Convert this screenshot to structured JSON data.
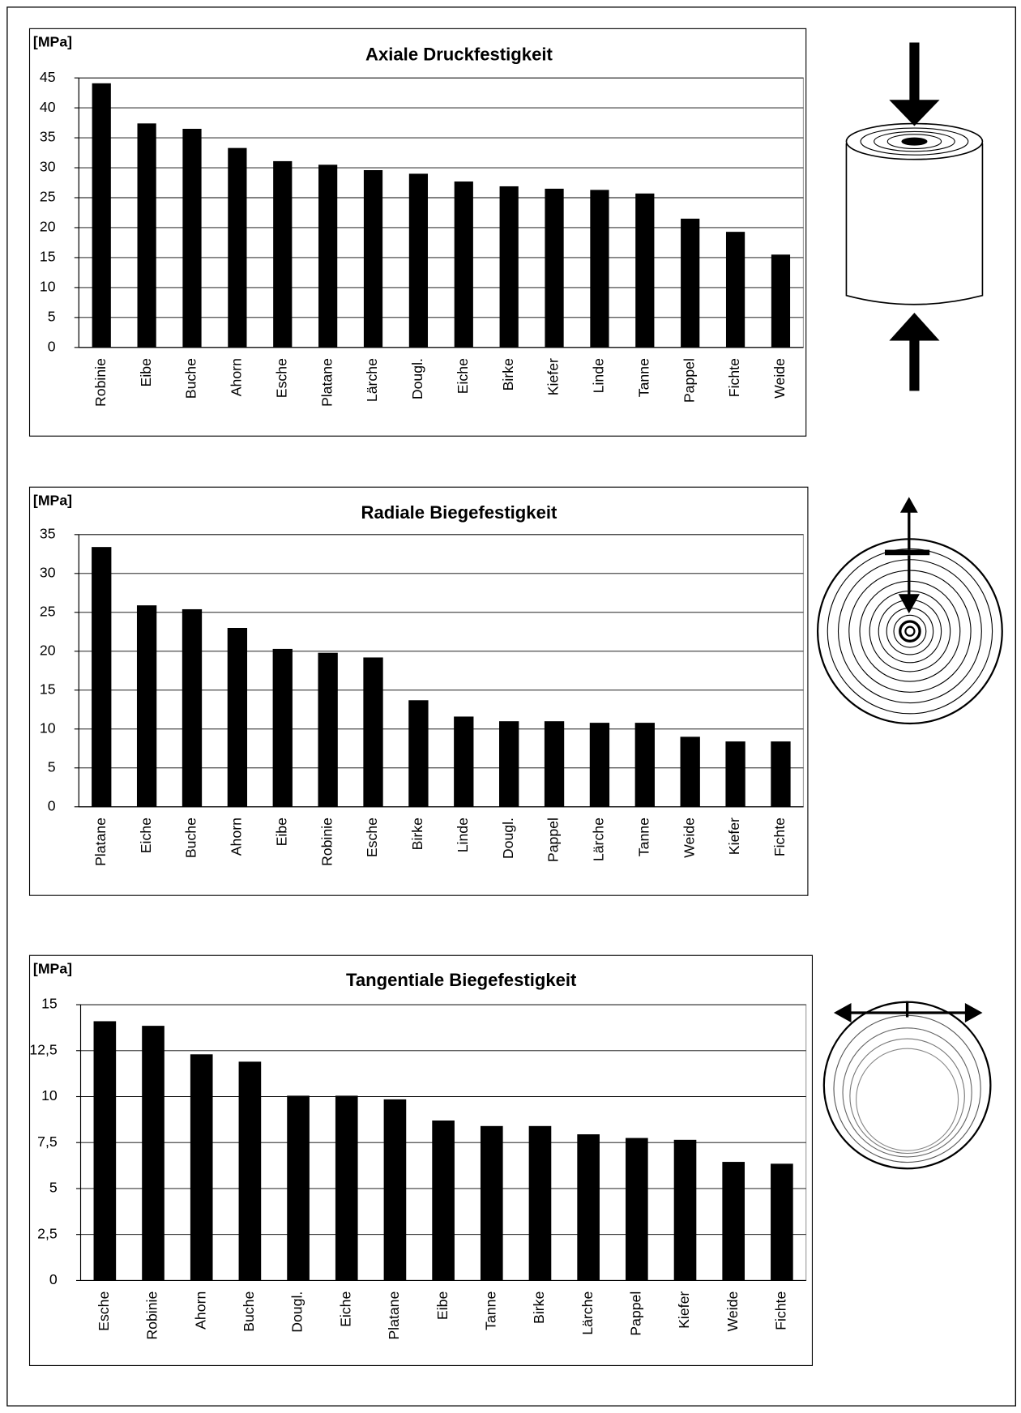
{
  "chart_data": [
    {
      "type": "bar",
      "title": "Axiale Druckfestigkeit",
      "y_label": "[MPa]",
      "color": "#000000",
      "grid": true,
      "categories": [
        "Robinie",
        "Eibe",
        "Buche",
        "Ahorn",
        "Esche",
        "Platane",
        "Lärche",
        "Dougl.",
        "Eiche",
        "Birke",
        "Kiefer",
        "Linde",
        "Tanne",
        "Pappel",
        "Fichte",
        "Weide"
      ],
      "values": [
        44.1,
        37.4,
        36.5,
        33.3,
        31.1,
        30.5,
        29.6,
        29,
        27.7,
        26.9,
        26.5,
        26.3,
        25.7,
        21.5,
        19.3,
        15.5
      ],
      "ylim": [
        0,
        45
      ],
      "yticks": [
        0,
        5,
        10,
        15,
        20,
        25,
        30,
        35,
        40,
        45
      ]
    },
    {
      "type": "bar",
      "title": "Radiale Biegefestigkeit",
      "y_label": "[MPa]",
      "color": "#000000",
      "grid": true,
      "categories": [
        "Platane",
        "Eiche",
        "Buche",
        "Ahorn",
        "Eibe",
        "Robinie",
        "Esche",
        "Birke",
        "Linde",
        "Dougl.",
        "Pappel",
        "Lärche",
        "Tanne",
        "Weide",
        "Kiefer",
        "Fichte"
      ],
      "values": [
        33.4,
        25.9,
        25.4,
        23,
        20.3,
        19.8,
        19.2,
        13.7,
        11.6,
        11,
        11,
        10.8,
        10.8,
        9,
        8.4,
        8.4
      ],
      "ylim": [
        0,
        35
      ],
      "yticks": [
        0,
        5,
        10,
        15,
        20,
        25,
        30,
        35
      ]
    },
    {
      "type": "bar",
      "title": "Tangentiale Biegefestigkeit",
      "y_label": "[MPa]",
      "color": "#000000",
      "grid": true,
      "categories": [
        "Esche",
        "Robinie",
        "Ahorn",
        "Buche",
        "Dougl.",
        "Eiche",
        "Platane",
        "Eibe",
        "Tanne",
        "Birke",
        "Lärche",
        "Pappel",
        "Kiefer",
        "Weide",
        "Fichte"
      ],
      "values": [
        14.1,
        13.85,
        12.3,
        11.9,
        10.05,
        10.05,
        9.85,
        8.7,
        8.4,
        8.4,
        7.95,
        7.75,
        7.65,
        6.45,
        6.35
      ],
      "ylim": [
        0,
        15
      ],
      "yticks": [
        0,
        {
          "value": 2.5,
          "label": "2,5"
        },
        5,
        {
          "value": 7.5,
          "label": "7,5"
        },
        10,
        {
          "value": 12.5,
          "label": "12,5"
        },
        15
      ]
    }
  ]
}
